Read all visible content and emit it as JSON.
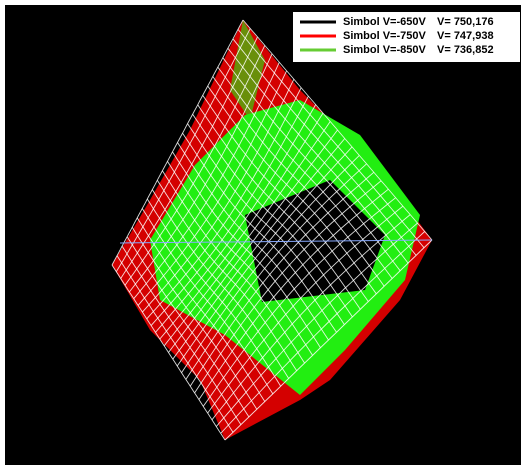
{
  "legend": {
    "items": [
      {
        "label": "Simbol V=-650V",
        "value": "V= 750,176",
        "color": "#000000"
      },
      {
        "label": "Simbol V=-750V",
        "value": "V= 747,938",
        "color": "#ff0000"
      },
      {
        "label": "Simbol V=-850V",
        "value": "V= 736,852",
        "color": "#66cc33"
      }
    ]
  }
}
